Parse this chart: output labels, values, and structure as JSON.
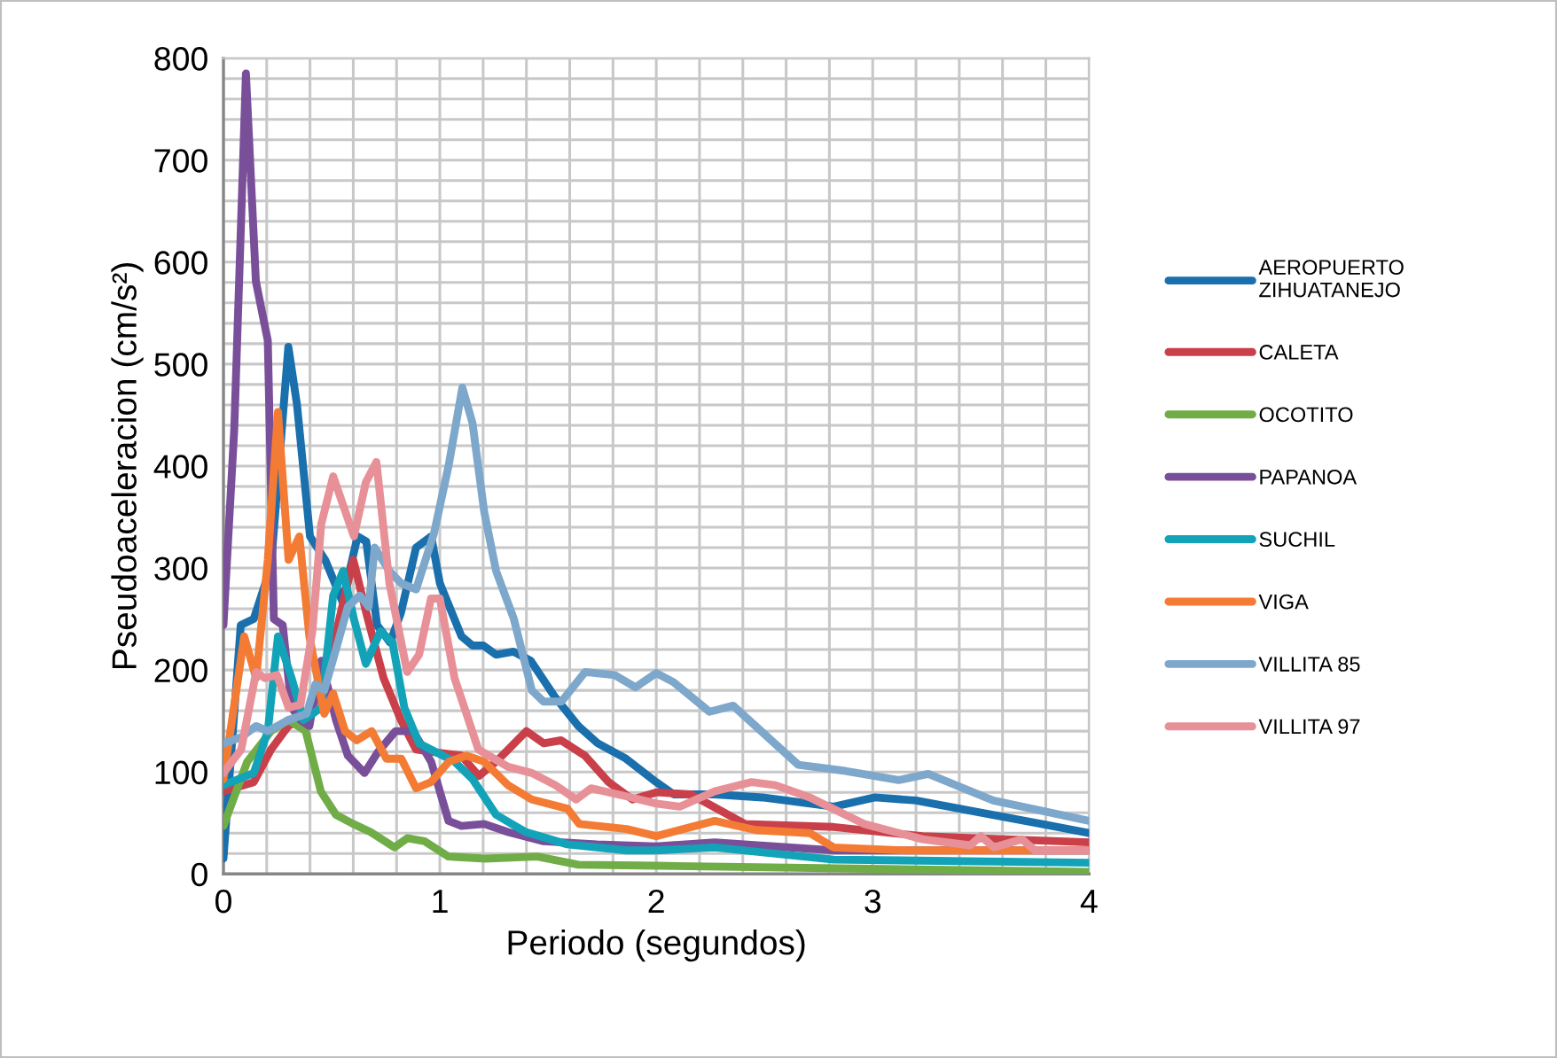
{
  "chart_data": {
    "type": "line",
    "xlabel": "Periodo (segundos)",
    "ylabel": "Pseudoaceleracion (cm/s²)",
    "xlim": [
      0,
      4
    ],
    "ylim": [
      0,
      800
    ],
    "xticks": [
      0,
      {
        "value": 0.2,
        "label": null
      },
      {
        "value": 0.4,
        "label": null
      },
      {
        "value": 0.6,
        "label": null
      },
      {
        "value": 0.8,
        "label": null
      },
      1,
      {
        "value": 1.2,
        "label": null
      },
      {
        "value": 1.4,
        "label": null
      },
      {
        "value": 1.6,
        "label": null
      },
      {
        "value": 1.8,
        "label": null
      },
      2,
      {
        "value": 2.2,
        "label": null
      },
      {
        "value": 2.4,
        "label": null
      },
      {
        "value": 2.6,
        "label": null
      },
      {
        "value": 2.8,
        "label": null
      },
      3,
      {
        "value": 3.2,
        "label": null
      },
      {
        "value": 3.4,
        "label": null
      },
      {
        "value": 3.6,
        "label": null
      },
      {
        "value": 3.8,
        "label": null
      },
      4
    ],
    "yticks": [
      0,
      {
        "value": 20,
        "label": null
      },
      {
        "value": 40,
        "label": null
      },
      {
        "value": 60,
        "label": null
      },
      {
        "value": 80,
        "label": null
      },
      100,
      {
        "value": 120,
        "label": null
      },
      {
        "value": 140,
        "label": null
      },
      {
        "value": 160,
        "label": null
      },
      {
        "value": 180,
        "label": null
      },
      200,
      {
        "value": 220,
        "label": null
      },
      {
        "value": 240,
        "label": null
      },
      {
        "value": 260,
        "label": null
      },
      {
        "value": 280,
        "label": null
      },
      300,
      {
        "value": 320,
        "label": null
      },
      {
        "value": 340,
        "label": null
      },
      {
        "value": 360,
        "label": null
      },
      {
        "value": 380,
        "label": null
      },
      400,
      {
        "value": 420,
        "label": null
      },
      {
        "value": 440,
        "label": null
      },
      {
        "value": 460,
        "label": null
      },
      {
        "value": 480,
        "label": null
      },
      500,
      {
        "value": 520,
        "label": null
      },
      {
        "value": 540,
        "label": null
      },
      {
        "value": 560,
        "label": null
      },
      {
        "value": 580,
        "label": null
      },
      600,
      {
        "value": 620,
        "label": null
      },
      {
        "value": 640,
        "label": null
      },
      {
        "value": 660,
        "label": null
      },
      {
        "value": 680,
        "label": null
      },
      700,
      {
        "value": 720,
        "label": null
      },
      {
        "value": 740,
        "label": null
      },
      {
        "value": 760,
        "label": null
      },
      {
        "value": 780,
        "label": null
      },
      800
    ],
    "grid": true,
    "legend": "right",
    "marker": "none",
    "line_style": "solid",
    "series": [
      {
        "name": "AEROPUERTO ZIHUATANEJO",
        "color": "#1a6fad",
        "x": [
          0,
          0.08,
          0.14,
          0.22,
          0.3,
          0.34,
          0.4,
          0.47,
          0.55,
          0.62,
          0.66,
          0.71,
          0.77,
          0.82,
          0.89,
          0.96,
          1.0,
          1.1,
          1.15,
          1.2,
          1.26,
          1.34,
          1.42,
          1.53,
          1.64,
          1.73,
          1.86,
          2.0,
          2.08,
          2.27,
          2.49,
          2.82,
          3.01,
          3.2,
          3.5,
          3.78,
          4.0
        ],
        "values": [
          15,
          244,
          250,
          302,
          517,
          460,
          331,
          308,
          267,
          331,
          326,
          244,
          227,
          256,
          320,
          331,
          285,
          233,
          224,
          224,
          215,
          218,
          209,
          174,
          145,
          128,
          113,
          90,
          78,
          78,
          75,
          66,
          75,
          72,
          60,
          49,
          40
        ]
      },
      {
        "name": "CALETA",
        "color": "#c9404a",
        "x": [
          0,
          0.14,
          0.22,
          0.3,
          0.38,
          0.45,
          0.51,
          0.6,
          0.66,
          0.74,
          0.82,
          0.89,
          0.99,
          1.1,
          1.18,
          1.26,
          1.4,
          1.48,
          1.56,
          1.67,
          1.78,
          1.89,
          2.0,
          2.16,
          2.41,
          2.82,
          3.23,
          4.0
        ],
        "values": [
          81,
          90,
          122,
          145,
          154,
          180,
          227,
          308,
          256,
          192,
          151,
          122,
          119,
          116,
          96,
          110,
          140,
          128,
          131,
          116,
          90,
          73,
          80,
          78,
          49,
          46,
          37,
          31
        ]
      },
      {
        "name": "OCOTITO",
        "color": "#70ad47",
        "x": [
          0,
          0.11,
          0.22,
          0.3,
          0.38,
          0.45,
          0.52,
          0.6,
          0.68,
          0.79,
          0.85,
          0.93,
          1.04,
          1.21,
          1.45,
          1.64,
          2.0,
          4.0
        ],
        "values": [
          47,
          110,
          140,
          151,
          140,
          81,
          58,
          49,
          41,
          26,
          35,
          32,
          17,
          15,
          17,
          9,
          8,
          2
        ]
      },
      {
        "name": "PAPANOA",
        "color": "#7a4f9a",
        "x": [
          0,
          0.05,
          0.104,
          0.15,
          0.205,
          0.233,
          0.274,
          0.315,
          0.356,
          0.397,
          0.452,
          0.52,
          0.575,
          0.652,
          0.712,
          0.795,
          0.877,
          0.96,
          1.04,
          1.1,
          1.205,
          1.315,
          1.479,
          1.726,
          2.0,
          2.27,
          2.82,
          4.0
        ],
        "values": [
          244,
          436,
          785,
          581,
          523,
          250,
          244,
          163,
          151,
          145,
          209,
          151,
          116,
          99,
          119,
          140,
          140,
          110,
          52,
          47,
          49,
          41,
          32,
          29,
          27,
          31,
          23,
          23
        ]
      },
      {
        "name": "SUCHIL",
        "color": "#12a3b8",
        "x": [
          0,
          0.14,
          0.205,
          0.252,
          0.315,
          0.37,
          0.452,
          0.507,
          0.553,
          0.603,
          0.658,
          0.726,
          0.781,
          0.836,
          0.904,
          0.986,
          1.068,
          1.151,
          1.26,
          1.397,
          1.589,
          1.863,
          2.0,
          2.27,
          2.82,
          4.0
        ],
        "values": [
          87,
          99,
          140,
          233,
          192,
          151,
          163,
          273,
          297,
          250,
          206,
          238,
          227,
          163,
          128,
          119,
          110,
          93,
          58,
          41,
          29,
          23,
          23,
          26,
          14,
          11
        ]
      },
      {
        "name": "VIGA",
        "color": "#f47b34",
        "x": [
          0,
          0.096,
          0.151,
          0.205,
          0.252,
          0.301,
          0.351,
          0.397,
          0.466,
          0.507,
          0.562,
          0.616,
          0.685,
          0.753,
          0.822,
          0.89,
          0.959,
          1.041,
          1.123,
          1.205,
          1.315,
          1.425,
          1.589,
          1.644,
          1.863,
          2.0,
          2.27,
          2.46,
          2.71,
          2.82,
          3.15,
          4.0
        ],
        "values": [
          93,
          233,
          192,
          308,
          453,
          308,
          331,
          233,
          157,
          177,
          140,
          131,
          140,
          113,
          113,
          84,
          90,
          110,
          116,
          110,
          87,
          73,
          64,
          49,
          44,
          37,
          52,
          43,
          40,
          26,
          23,
          23
        ]
      },
      {
        "name": "VILLITA 85",
        "color": "#7ea7cc",
        "x": [
          0,
          0.082,
          0.151,
          0.205,
          0.301,
          0.384,
          0.425,
          0.466,
          0.521,
          0.575,
          0.63,
          0.671,
          0.699,
          0.767,
          0.822,
          0.89,
          0.973,
          1.041,
          1.104,
          1.151,
          1.205,
          1.26,
          1.342,
          1.425,
          1.479,
          1.562,
          1.671,
          1.808,
          1.904,
          2.0,
          2.08,
          2.246,
          2.355,
          2.656,
          2.874,
          3.12,
          3.257,
          3.557,
          4.0
        ],
        "values": [
          128,
          134,
          145,
          140,
          151,
          157,
          186,
          180,
          221,
          262,
          273,
          262,
          320,
          297,
          285,
          279,
          334,
          401,
          477,
          442,
          355,
          297,
          250,
          180,
          169,
          169,
          198,
          195,
          183,
          197,
          188,
          159,
          165,
          107,
          101,
          92,
          98,
          72,
          52
        ]
      },
      {
        "name": "VILLITA 97",
        "color": "#e89097",
        "x": [
          0,
          0.082,
          0.151,
          0.192,
          0.247,
          0.301,
          0.356,
          0.411,
          0.452,
          0.507,
          0.603,
          0.658,
          0.707,
          0.767,
          0.849,
          0.904,
          0.959,
          1.0,
          1.068,
          1.178,
          1.315,
          1.425,
          1.534,
          1.63,
          1.699,
          1.863,
          2.0,
          2.11,
          2.27,
          2.44,
          2.55,
          2.71,
          2.96,
          3.23,
          3.45,
          3.5,
          3.56,
          3.69,
          3.75,
          4.0
        ],
        "values": [
          99,
          122,
          198,
          192,
          195,
          163,
          166,
          238,
          343,
          390,
          331,
          384,
          404,
          285,
          198,
          215,
          270,
          270,
          192,
          122,
          105,
          99,
          87,
          73,
          84,
          76,
          69,
          66,
          81,
          90,
          87,
          75,
          49,
          34,
          28,
          37,
          26,
          34,
          23,
          23
        ]
      }
    ]
  }
}
